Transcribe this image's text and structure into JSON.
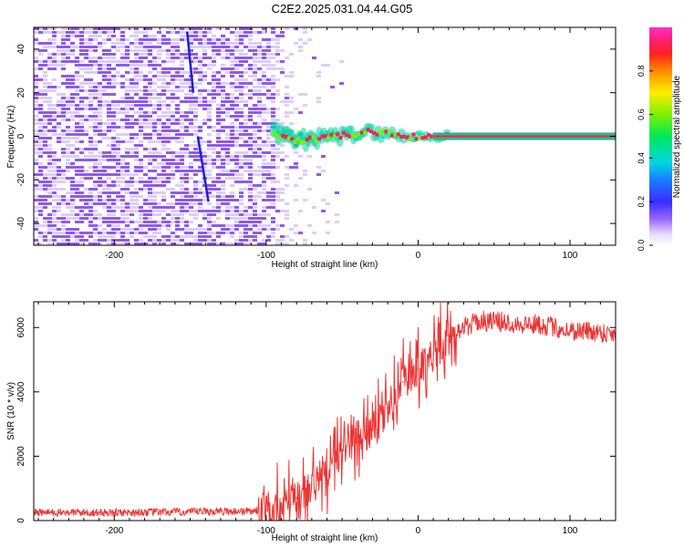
{
  "title": "C2E2.2025.031.04.44.G05",
  "colors": {
    "noise_purple": "#7A3CF0",
    "noise_light": "#D8C8FA",
    "snr_line": "#EE3333",
    "axis": "#000000"
  },
  "chart_data": [
    {
      "type": "heatmap",
      "xlabel": "Height of straight line (km)",
      "ylabel": "Frequency (Hz)",
      "xlim": [
        -253,
        130
      ],
      "ylim": [
        -50,
        50
      ],
      "xticks": [
        -200,
        -100,
        0,
        100
      ],
      "xtick_labels": [
        "-200",
        "-100",
        "0",
        "100"
      ],
      "yticks": [
        -40,
        -20,
        0,
        20,
        40
      ],
      "ytick_labels": [
        "-40",
        "-20",
        "0",
        "20",
        "40"
      ],
      "grid": false,
      "noise_region_km": [
        -253,
        -65
      ],
      "signal_trace": [
        {
          "x": -95,
          "y": 1
        },
        {
          "x": -80,
          "y": -2
        },
        {
          "x": -65,
          "y": -1
        },
        {
          "x": -50,
          "y": 0
        },
        {
          "x": -35,
          "y": 2
        },
        {
          "x": -20,
          "y": 1
        },
        {
          "x": -5,
          "y": 0
        },
        {
          "x": 10,
          "y": 0
        },
        {
          "x": 130,
          "y": 0
        }
      ],
      "streaks": [
        {
          "x1": -152,
          "y1": 48,
          "x2": -148,
          "y2": 20
        },
        {
          "x1": -145,
          "y1": 0,
          "x2": -138,
          "y2": -30
        }
      ],
      "colorbar": {
        "label": "Normalized spectral amplitude",
        "range": [
          0,
          1
        ],
        "ticks": [
          0.0,
          0.2,
          0.4,
          0.6,
          0.8
        ],
        "tick_labels": [
          "0.0",
          "0.2",
          "0.4",
          "0.6",
          "0.8"
        ]
      }
    },
    {
      "type": "line",
      "xlabel": "Height of straight line (km)",
      "ylabel": "SNR (10 * v/v)",
      "xlim": [
        -253,
        130
      ],
      "ylim": [
        0,
        6800
      ],
      "xticks": [
        -200,
        -100,
        0,
        100
      ],
      "xtick_labels": [
        "-200",
        "-100",
        "0",
        "100"
      ],
      "yticks": [
        0,
        2000,
        4000,
        6000
      ],
      "ytick_labels": [
        "0",
        "2000",
        "4000",
        "6000"
      ],
      "grid": false,
      "x": [
        -253,
        -200,
        -150,
        -110,
        -100,
        -90,
        -80,
        -70,
        -60,
        -50,
        -40,
        -30,
        -20,
        -10,
        0,
        10,
        20,
        30,
        40,
        50,
        60,
        70,
        80,
        90,
        100,
        110,
        120,
        130
      ],
      "y": [
        250,
        250,
        270,
        300,
        320,
        450,
        700,
        1100,
        1500,
        2200,
        2600,
        2800,
        3500,
        4300,
        4700,
        5200,
        5800,
        6000,
        6200,
        6200,
        6150,
        6100,
        6100,
        6000,
        5900,
        5900,
        5850,
        5800
      ]
    }
  ]
}
